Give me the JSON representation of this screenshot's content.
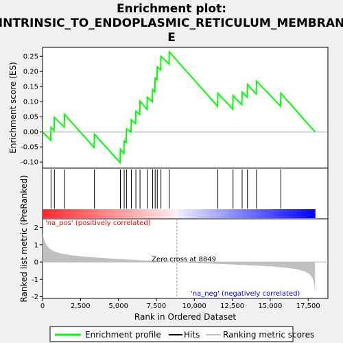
{
  "chart_data": {
    "type": "line",
    "title_lines": [
      "Enrichment plot:",
      "INTRINSIC_TO_ENDOPLASMIC_RETICULUM_MEMBRAN",
      "E"
    ],
    "xlabel": "Rank in Ordered Dataset",
    "ylabel_top": "Enrichment score (ES)",
    "ylabel_bottom": "Ranked list metric (PreRanked)",
    "x_range": [
      0,
      18800
    ],
    "x_ticks": [
      0,
      2500,
      5000,
      7500,
      10000,
      12500,
      15000,
      17500
    ],
    "x_tick_labels": [
      "0",
      "2,500",
      "5,000",
      "7,500",
      "10,000",
      "12,500",
      "15,000",
      "17,500"
    ],
    "es_range": [
      -0.12,
      0.28
    ],
    "es_ticks": [
      -0.1,
      -0.05,
      0.0,
      0.05,
      0.1,
      0.15,
      0.2,
      0.25
    ],
    "es_tick_labels": [
      "-0.10",
      "-0.05",
      "0.00",
      "0.05",
      "0.10",
      "0.15",
      "0.20",
      "0.25"
    ],
    "metric_range": [
      -2.1,
      2.5
    ],
    "metric_ticks": [
      -2,
      -1,
      0,
      1,
      2
    ],
    "metric_tick_labels": [
      "-2",
      "-1",
      "0",
      "1",
      "2"
    ],
    "hits": [
      560,
      780,
      1450,
      3420,
      5130,
      5380,
      5530,
      5850,
      6150,
      6420,
      6900,
      7250,
      7420,
      7560,
      7800,
      8350,
      11550,
      12550,
      13150,
      13500,
      14100,
      15700
    ],
    "es_curve": [
      [
        0,
        0.0
      ],
      [
        540,
        -0.028
      ],
      [
        560,
        0.015
      ],
      [
        760,
        0.004
      ],
      [
        780,
        0.048
      ],
      [
        1430,
        0.016
      ],
      [
        1450,
        0.058
      ],
      [
        3400,
        -0.052
      ],
      [
        3420,
        -0.008
      ],
      [
        5110,
        -0.102
      ],
      [
        5130,
        -0.058
      ],
      [
        5360,
        -0.072
      ],
      [
        5380,
        -0.03
      ],
      [
        5510,
        -0.036
      ],
      [
        5530,
        0.01
      ],
      [
        5830,
        0.0
      ],
      [
        5850,
        0.04
      ],
      [
        6130,
        0.028
      ],
      [
        6150,
        0.068
      ],
      [
        6400,
        0.058
      ],
      [
        6420,
        0.102
      ],
      [
        6880,
        0.074
      ],
      [
        6900,
        0.115
      ],
      [
        7230,
        0.1
      ],
      [
        7250,
        0.14
      ],
      [
        7400,
        0.132
      ],
      [
        7420,
        0.178
      ],
      [
        7540,
        0.172
      ],
      [
        7560,
        0.215
      ],
      [
        7780,
        0.205
      ],
      [
        7800,
        0.25
      ],
      [
        8330,
        0.225
      ],
      [
        8350,
        0.265
      ],
      [
        11530,
        0.085
      ],
      [
        11550,
        0.128
      ],
      [
        12530,
        0.075
      ],
      [
        12550,
        0.12
      ],
      [
        13130,
        0.09
      ],
      [
        13150,
        0.132
      ],
      [
        13480,
        0.115
      ],
      [
        13500,
        0.157
      ],
      [
        14080,
        0.125
      ],
      [
        14100,
        0.168
      ],
      [
        15680,
        0.085
      ],
      [
        15700,
        0.128
      ],
      [
        17950,
        0.0
      ]
    ],
    "metric_curve": [
      [
        0,
        1.65
      ],
      [
        100,
        1.3
      ],
      [
        250,
        1.0
      ],
      [
        500,
        0.75
      ],
      [
        800,
        0.6
      ],
      [
        1200,
        0.5
      ],
      [
        2000,
        0.38
      ],
      [
        3000,
        0.3
      ],
      [
        4000,
        0.24
      ],
      [
        5000,
        0.18
      ],
      [
        6000,
        0.13
      ],
      [
        7000,
        0.08
      ],
      [
        8000,
        0.04
      ],
      [
        8849,
        0.0
      ],
      [
        10000,
        -0.04
      ],
      [
        11000,
        -0.08
      ],
      [
        12000,
        -0.12
      ],
      [
        13000,
        -0.16
      ],
      [
        14000,
        -0.2
      ],
      [
        15000,
        -0.25
      ],
      [
        16000,
        -0.32
      ],
      [
        16800,
        -0.42
      ],
      [
        17300,
        -0.55
      ],
      [
        17600,
        -0.7
      ],
      [
        17800,
        -0.95
      ],
      [
        17900,
        -1.3
      ],
      [
        17950,
        -1.85
      ]
    ],
    "zero_cross": 8849,
    "zero_cross_label": "Zero cross at 8849",
    "pos_label": "'na_pos' (positively correlated)",
    "neg_label": "'na_neg' (negatively correlated)",
    "legend": [
      "Enrichment profile",
      "Hits",
      "Ranking metric scores"
    ],
    "colors": {
      "es_line": "#00ff00",
      "hit": "#000000",
      "metric_fill": "#c0c0c0",
      "pos_text": "#ff0000",
      "neg_text": "#0000ff",
      "zero_line": "#c0c0c0"
    }
  }
}
